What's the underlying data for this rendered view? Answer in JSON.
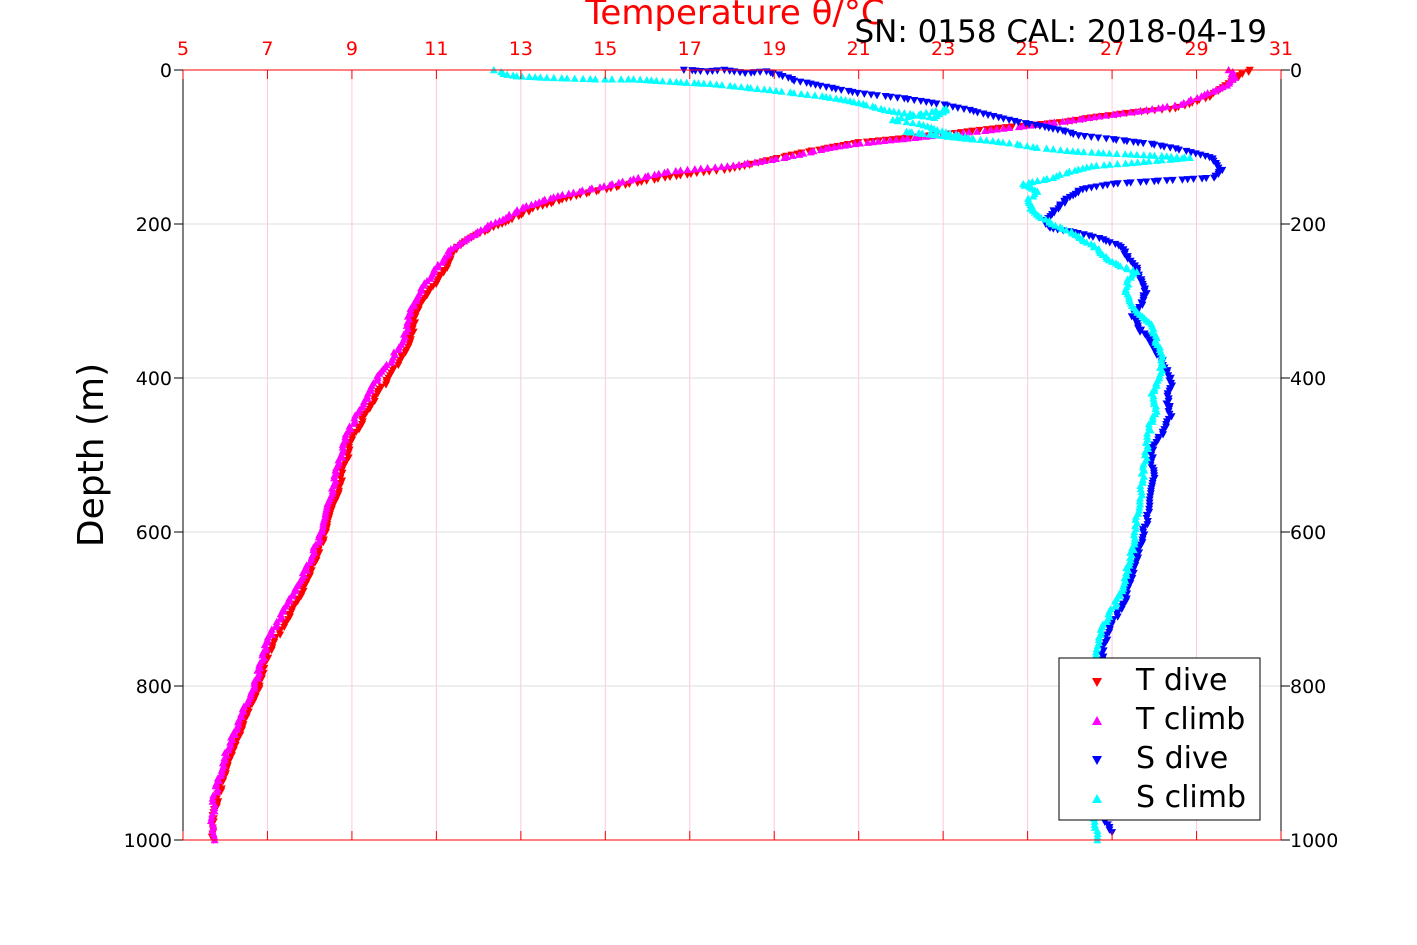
{
  "chart_data": {
    "type": "scatter",
    "title": "SN: 0158  CAL: 2018-04-19",
    "xlabel": "Temperature θ/°C",
    "ylabel": "Depth (m)",
    "xlim": [
      5,
      31
    ],
    "ylim": [
      0,
      1000
    ],
    "y_reversed": true,
    "x_ticks": [
      "5",
      "7",
      "9",
      "11",
      "13",
      "15",
      "17",
      "19",
      "21",
      "23",
      "25",
      "27",
      "29",
      "31"
    ],
    "y_ticks": [
      "0",
      "200",
      "400",
      "600",
      "800",
      "1000"
    ],
    "grid": true,
    "legend_position": "bottom-right",
    "series": [
      {
        "name": "T dive",
        "marker": "triangle-down",
        "color": "#ff0000",
        "points": [
          [
            30.3,
            0
          ],
          [
            30.1,
            5
          ],
          [
            29.8,
            15
          ],
          [
            29.3,
            35
          ],
          [
            28.5,
            50
          ],
          [
            27.5,
            55
          ],
          [
            26.5,
            62
          ],
          [
            25.8,
            68
          ],
          [
            25.0,
            72
          ],
          [
            24.0,
            77
          ],
          [
            23.3,
            82
          ],
          [
            22.5,
            86
          ],
          [
            21.8,
            90
          ],
          [
            21.0,
            94
          ],
          [
            20.4,
            100
          ],
          [
            19.8,
            106
          ],
          [
            19.2,
            113
          ],
          [
            18.5,
            122
          ],
          [
            17.8,
            130
          ],
          [
            17.2,
            134
          ],
          [
            16.4,
            140
          ],
          [
            15.6,
            148
          ],
          [
            15.0,
            155
          ],
          [
            14.4,
            162
          ],
          [
            13.9,
            170
          ],
          [
            13.4,
            178
          ],
          [
            13.0,
            188
          ],
          [
            12.6,
            198
          ],
          [
            12.2,
            208
          ],
          [
            11.8,
            218
          ],
          [
            11.5,
            230
          ],
          [
            11.3,
            245
          ],
          [
            11.2,
            260
          ],
          [
            11.0,
            275
          ],
          [
            10.8,
            290
          ],
          [
            10.6,
            305
          ],
          [
            10.5,
            320
          ],
          [
            10.45,
            340
          ],
          [
            10.3,
            360
          ],
          [
            10.1,
            380
          ],
          [
            9.9,
            400
          ],
          [
            9.6,
            420
          ],
          [
            9.4,
            440
          ],
          [
            9.2,
            460
          ],
          [
            9.0,
            480
          ],
          [
            8.9,
            500
          ],
          [
            8.8,
            520
          ],
          [
            8.7,
            540
          ],
          [
            8.6,
            560
          ],
          [
            8.45,
            580
          ],
          [
            8.35,
            600
          ],
          [
            8.25,
            620
          ],
          [
            8.1,
            640
          ],
          [
            7.95,
            660
          ],
          [
            7.8,
            680
          ],
          [
            7.6,
            700
          ],
          [
            7.4,
            720
          ],
          [
            7.2,
            740
          ],
          [
            7.0,
            760
          ],
          [
            6.9,
            780
          ],
          [
            6.8,
            800
          ],
          [
            6.65,
            820
          ],
          [
            6.5,
            840
          ],
          [
            6.35,
            860
          ],
          [
            6.2,
            880
          ],
          [
            6.05,
            900
          ],
          [
            5.95,
            920
          ],
          [
            5.85,
            940
          ],
          [
            5.75,
            960
          ],
          [
            5.72,
            980
          ],
          [
            5.72,
            1000
          ]
        ]
      },
      {
        "name": "T climb",
        "marker": "triangle-up",
        "color": "#ff00ff",
        "points": [
          [
            29.8,
            0
          ],
          [
            29.9,
            10
          ],
          [
            29.7,
            20
          ],
          [
            29.2,
            32
          ],
          [
            28.6,
            45
          ],
          [
            27.8,
            52
          ],
          [
            27.0,
            58
          ],
          [
            26.2,
            64
          ],
          [
            25.4,
            70
          ],
          [
            24.6,
            75
          ],
          [
            23.8,
            80
          ],
          [
            23.0,
            84
          ],
          [
            22.3,
            88
          ],
          [
            21.6,
            92
          ],
          [
            20.9,
            96
          ],
          [
            20.2,
            102
          ],
          [
            19.6,
            110
          ],
          [
            18.8,
            118
          ],
          [
            18.0,
            124
          ],
          [
            17.3,
            128
          ],
          [
            16.5,
            132
          ],
          [
            15.8,
            140
          ],
          [
            15.2,
            148
          ],
          [
            14.6,
            155
          ],
          [
            14.0,
            162
          ],
          [
            13.5,
            170
          ],
          [
            13.0,
            180
          ],
          [
            12.7,
            190
          ],
          [
            12.3,
            200
          ],
          [
            12.0,
            210
          ],
          [
            11.7,
            220
          ],
          [
            11.3,
            235
          ],
          [
            11.1,
            250
          ],
          [
            10.9,
            265
          ],
          [
            10.7,
            280
          ],
          [
            10.5,
            300
          ],
          [
            10.35,
            320
          ],
          [
            10.3,
            340
          ],
          [
            10.1,
            360
          ],
          [
            9.9,
            380
          ],
          [
            9.6,
            400
          ],
          [
            9.4,
            420
          ],
          [
            9.15,
            445
          ],
          [
            8.9,
            470
          ],
          [
            8.8,
            490
          ],
          [
            8.7,
            510
          ],
          [
            8.6,
            530
          ],
          [
            8.5,
            550
          ],
          [
            8.4,
            570
          ],
          [
            8.3,
            590
          ],
          [
            8.2,
            610
          ],
          [
            8.05,
            630
          ],
          [
            7.9,
            650
          ],
          [
            7.7,
            670
          ],
          [
            7.5,
            690
          ],
          [
            7.3,
            710
          ],
          [
            7.1,
            730
          ],
          [
            6.95,
            750
          ],
          [
            6.85,
            770
          ],
          [
            6.75,
            790
          ],
          [
            6.6,
            810
          ],
          [
            6.45,
            830
          ],
          [
            6.3,
            850
          ],
          [
            6.15,
            870
          ],
          [
            6.0,
            890
          ],
          [
            5.9,
            910
          ],
          [
            5.8,
            930
          ],
          [
            5.72,
            950
          ],
          [
            5.7,
            975
          ],
          [
            5.75,
            1000
          ]
        ]
      },
      {
        "name": "S dive",
        "marker": "triangle-down",
        "color": "#0000ff",
        "points": [
          [
            16.9,
            0
          ],
          [
            17.4,
            2
          ],
          [
            17.8,
            0
          ],
          [
            18.3,
            4
          ],
          [
            18.8,
            2
          ],
          [
            19.1,
            6
          ],
          [
            19.5,
            14
          ],
          [
            20.2,
            22
          ],
          [
            21.0,
            30
          ],
          [
            22.2,
            38
          ],
          [
            23.0,
            45
          ],
          [
            23.6,
            52
          ],
          [
            24.2,
            60
          ],
          [
            24.8,
            68
          ],
          [
            25.4,
            74
          ],
          [
            25.9,
            80
          ],
          [
            26.2,
            85
          ],
          [
            27.0,
            90
          ],
          [
            27.9,
            96
          ],
          [
            28.5,
            102
          ],
          [
            29.4,
            115
          ],
          [
            29.6,
            130
          ],
          [
            29.4,
            140
          ],
          [
            28.8,
            142
          ],
          [
            27.8,
            145
          ],
          [
            27.0,
            148
          ],
          [
            26.3,
            155
          ],
          [
            26.0,
            165
          ],
          [
            25.8,
            175
          ],
          [
            25.6,
            185
          ],
          [
            25.4,
            195
          ],
          [
            25.5,
            205
          ],
          [
            26.2,
            212
          ],
          [
            26.8,
            220
          ],
          [
            27.2,
            230
          ],
          [
            27.4,
            245
          ],
          [
            27.6,
            260
          ],
          [
            27.7,
            275
          ],
          [
            27.8,
            290
          ],
          [
            27.7,
            305
          ],
          [
            27.5,
            320
          ],
          [
            27.6,
            335
          ],
          [
            27.9,
            350
          ],
          [
            28.1,
            370
          ],
          [
            28.3,
            390
          ],
          [
            28.4,
            410
          ],
          [
            28.3,
            430
          ],
          [
            28.4,
            450
          ],
          [
            28.2,
            470
          ],
          [
            28.0,
            490
          ],
          [
            27.9,
            510
          ],
          [
            28.0,
            530
          ],
          [
            27.9,
            550
          ],
          [
            27.85,
            570
          ],
          [
            27.8,
            590
          ],
          [
            27.7,
            610
          ],
          [
            27.6,
            630
          ],
          [
            27.5,
            650
          ],
          [
            27.4,
            670
          ],
          [
            27.3,
            690
          ],
          [
            27.1,
            710
          ],
          [
            26.9,
            730
          ],
          [
            26.8,
            750
          ],
          [
            26.75,
            770
          ],
          [
            26.7,
            790
          ],
          [
            26.7,
            810
          ],
          [
            26.7,
            830
          ],
          [
            26.7,
            850
          ],
          [
            26.7,
            870
          ],
          [
            26.7,
            890
          ],
          [
            26.65,
            910
          ],
          [
            26.65,
            930
          ],
          [
            26.7,
            950
          ],
          [
            26.8,
            970
          ],
          [
            27.0,
            990
          ]
        ]
      },
      {
        "name": "S climb",
        "marker": "triangle-up",
        "color": "#00ffff",
        "points": [
          [
            12.4,
            0
          ],
          [
            12.6,
            5
          ],
          [
            12.9,
            8
          ],
          [
            13.6,
            10
          ],
          [
            14.8,
            12
          ],
          [
            15.7,
            12
          ],
          [
            16.2,
            14
          ],
          [
            16.8,
            16
          ],
          [
            17.5,
            18
          ],
          [
            18.2,
            22
          ],
          [
            18.9,
            26
          ],
          [
            19.5,
            30
          ],
          [
            20.1,
            34
          ],
          [
            20.6,
            38
          ],
          [
            21.1,
            44
          ],
          [
            21.6,
            52
          ],
          [
            22.3,
            58
          ],
          [
            22.8,
            62
          ],
          [
            23.1,
            50
          ],
          [
            21.8,
            65
          ],
          [
            22.4,
            70
          ],
          [
            22.9,
            78
          ],
          [
            23.3,
            84
          ],
          [
            23.7,
            90
          ],
          [
            22.1,
            80
          ],
          [
            24.6,
            95
          ],
          [
            25.1,
            100
          ],
          [
            25.9,
            105
          ],
          [
            26.8,
            108
          ],
          [
            27.6,
            110
          ],
          [
            28.3,
            112
          ],
          [
            28.8,
            114
          ],
          [
            27.6,
            120
          ],
          [
            26.5,
            125
          ],
          [
            26.0,
            132
          ],
          [
            25.6,
            140
          ],
          [
            24.9,
            148
          ],
          [
            25.2,
            158
          ],
          [
            25.0,
            170
          ],
          [
            25.1,
            180
          ],
          [
            25.3,
            190
          ],
          [
            25.6,
            200
          ],
          [
            26.0,
            210
          ],
          [
            26.3,
            220
          ],
          [
            26.6,
            230
          ],
          [
            26.9,
            245
          ],
          [
            27.2,
            255
          ],
          [
            27.6,
            262
          ],
          [
            27.4,
            272
          ],
          [
            27.3,
            285
          ],
          [
            27.4,
            300
          ],
          [
            27.6,
            315
          ],
          [
            27.9,
            330
          ],
          [
            28.0,
            345
          ],
          [
            28.1,
            360
          ],
          [
            28.2,
            380
          ],
          [
            28.1,
            400
          ],
          [
            27.95,
            420
          ],
          [
            28.05,
            440
          ],
          [
            27.9,
            460
          ],
          [
            27.85,
            480
          ],
          [
            27.8,
            500
          ],
          [
            27.75,
            520
          ],
          [
            27.7,
            540
          ],
          [
            27.65,
            560
          ],
          [
            27.6,
            580
          ],
          [
            27.55,
            600
          ],
          [
            27.5,
            620
          ],
          [
            27.4,
            640
          ],
          [
            27.3,
            660
          ],
          [
            27.2,
            680
          ],
          [
            27.0,
            700
          ],
          [
            26.8,
            720
          ],
          [
            26.7,
            740
          ],
          [
            26.65,
            760
          ],
          [
            26.65,
            780
          ],
          [
            26.6,
            800
          ],
          [
            26.6,
            820
          ],
          [
            26.6,
            840
          ],
          [
            26.55,
            860
          ],
          [
            26.55,
            880
          ],
          [
            26.5,
            900
          ],
          [
            26.5,
            920
          ],
          [
            26.5,
            940
          ],
          [
            26.55,
            960
          ],
          [
            26.6,
            980
          ],
          [
            26.65,
            1000
          ]
        ]
      }
    ]
  }
}
